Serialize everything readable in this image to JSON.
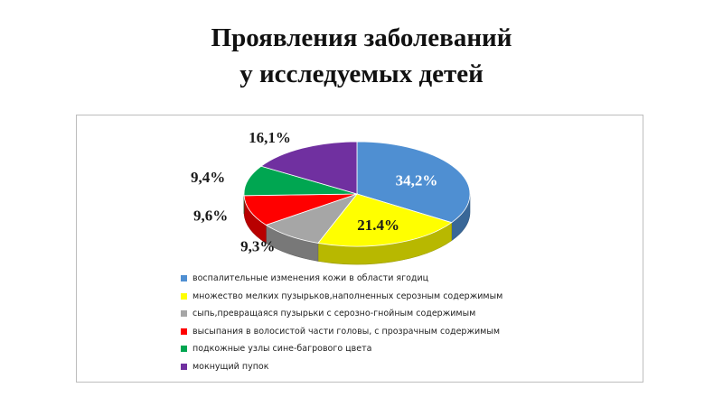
{
  "title": {
    "line1": "Проявления заболеваний",
    "line2": "у исследуемых детей"
  },
  "chart_data": {
    "type": "pie",
    "style": "3d",
    "legend_position": "bottom",
    "series": [
      {
        "name": "воспалительные изменения кожи в области ягодиц",
        "value": 34.2,
        "label": "34,2%",
        "color": "#4f8fd2"
      },
      {
        "name": "множество мелких пузырьков,наполненных серозным содержимым",
        "value": 21.4,
        "label": "21.4%",
        "color": "#ffff00"
      },
      {
        "name": "сыпь,превращаяся пузырьки с серозно-гнойным содержимым",
        "value": 9.3,
        "label": "9,3%",
        "color": "#a6a6a6"
      },
      {
        "name": "высыпания в волосистой части головы, с прозрачным содержимым",
        "value": 9.6,
        "label": "9,6%",
        "color": "#ff0000"
      },
      {
        "name": "подкожные узлы сине-багрового цвета",
        "value": 9.4,
        "label": "9,4%",
        "color": "#00a651"
      },
      {
        "name": "мокнущий пупок",
        "value": 16.1,
        "label": "16,1%",
        "color": "#7030a0"
      }
    ]
  }
}
